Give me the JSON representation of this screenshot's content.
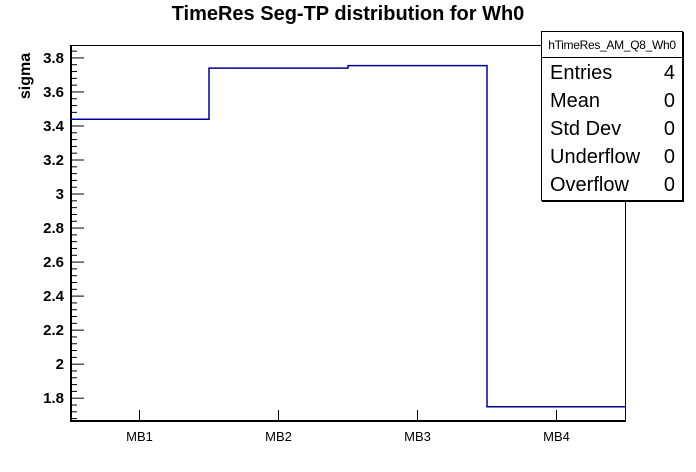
{
  "title": "TimeRes Seg-TP distribution for Wh0",
  "y_axis_label": "sigma",
  "stats": {
    "header": "hTimeRes_AM_Q8_Wh0",
    "rows": [
      {
        "label": "Entries",
        "value": "4"
      },
      {
        "label": "Mean",
        "value": "0"
      },
      {
        "label": "Std Dev",
        "value": "0"
      },
      {
        "label": "Underflow",
        "value": "0"
      },
      {
        "label": "Overflow",
        "value": "0"
      }
    ]
  },
  "chart_data": {
    "type": "step-line-histogram",
    "title": "TimeRes Seg-TP distribution for Wh0",
    "xlabel": "",
    "ylabel": "sigma",
    "categories": [
      "MB1",
      "MB2",
      "MB3",
      "MB4"
    ],
    "values": [
      3.44,
      3.74,
      3.755,
      1.75
    ],
    "ylim": [
      1.66,
      3.876
    ],
    "y_major_ticks": [
      1.8,
      2.0,
      2.2,
      2.4,
      2.6,
      2.8,
      3.0,
      3.2,
      3.4,
      3.6,
      3.8
    ],
    "y_major_tick_labels": [
      "1.8",
      "2",
      "2.2",
      "2.4",
      "2.6",
      "2.8",
      "3",
      "3.2",
      "3.4",
      "3.6",
      "3.8"
    ],
    "y_minor_tick_step": 0.04,
    "grid": false,
    "legend": false,
    "line_color": "#000099",
    "axis_color": "#000000"
  }
}
